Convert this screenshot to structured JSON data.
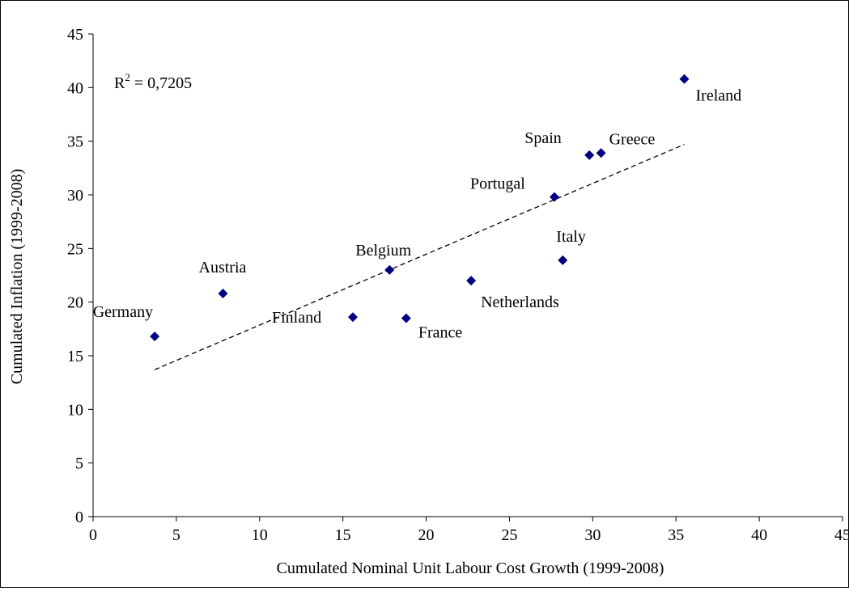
{
  "chart_data": {
    "type": "scatter",
    "xlabel": "Cumulated Nominal Unit Labour Cost Growth (1999-2008)",
    "ylabel": "Cumulated Inflation (1999-2008)",
    "xlim": [
      0,
      45
    ],
    "ylim": [
      0,
      45
    ],
    "xticks": [
      0,
      5,
      10,
      15,
      20,
      25,
      30,
      35,
      40,
      45
    ],
    "yticks": [
      0,
      5,
      10,
      15,
      20,
      25,
      30,
      35,
      40,
      45
    ],
    "grid": false,
    "marker": "diamond",
    "marker_color": "#000080",
    "points": [
      {
        "label": "Germany",
        "x": 3.7,
        "y": 16.8
      },
      {
        "label": "Austria",
        "x": 7.8,
        "y": 20.8
      },
      {
        "label": "Finland",
        "x": 15.6,
        "y": 18.6
      },
      {
        "label": "Belgium",
        "x": 17.8,
        "y": 23.0
      },
      {
        "label": "France",
        "x": 18.8,
        "y": 18.5
      },
      {
        "label": "Netherlands",
        "x": 22.7,
        "y": 22.0
      },
      {
        "label": "Portugal",
        "x": 27.7,
        "y": 29.8
      },
      {
        "label": "Italy",
        "x": 28.2,
        "y": 23.9
      },
      {
        "label": "Spain",
        "x": 29.8,
        "y": 33.7
      },
      {
        "label": "Greece",
        "x": 30.5,
        "y": 33.9
      },
      {
        "label": "Ireland",
        "x": 35.5,
        "y": 40.8
      }
    ],
    "trendline": {
      "style": "dashed",
      "x": [
        3.7,
        35.5
      ],
      "y": [
        13.7,
        34.7
      ]
    },
    "r_squared": {
      "prefix": "R",
      "exponent": "2",
      "value_text": " = 0,7205"
    }
  }
}
